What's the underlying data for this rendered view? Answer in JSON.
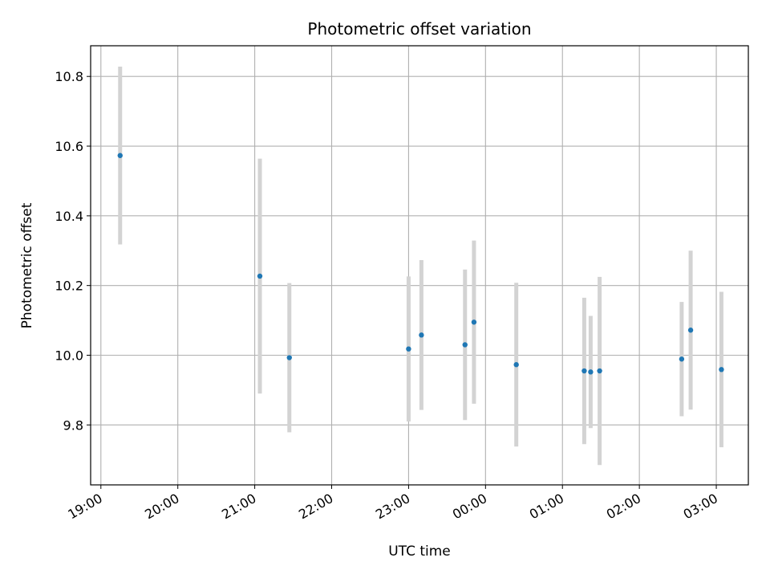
{
  "chart_data": {
    "type": "scatter",
    "title": "Photometric offset variation",
    "xlabel": "UTC time",
    "ylabel": "Photometric offset",
    "x_ticks": [
      "19:00",
      "20:00",
      "21:00",
      "22:00",
      "23:00",
      "00:00",
      "01:00",
      "02:00",
      "03:00"
    ],
    "y_ticks": [
      "9.8",
      "10.0",
      "10.2",
      "10.4",
      "10.6",
      "10.8"
    ],
    "ylim": [
      9.628,
      10.888
    ],
    "xlim": [
      "19:00",
      "03:25"
    ],
    "grid": true,
    "errorbar_color": "#d3d3d3",
    "point_color": "#1f77b4",
    "points": [
      {
        "x": "19:15",
        "y": 10.573,
        "err": 0.255
      },
      {
        "x": "21:04",
        "y": 10.227,
        "err": 0.337
      },
      {
        "x": "21:27",
        "y": 9.993,
        "err": 0.214
      },
      {
        "x": "23:00",
        "y": 10.018,
        "err": 0.208
      },
      {
        "x": "23:10",
        "y": 10.058,
        "err": 0.215
      },
      {
        "x": "23:44",
        "y": 10.03,
        "err": 0.216
      },
      {
        "x": "23:51",
        "y": 10.095,
        "err": 0.234
      },
      {
        "x": "00:24",
        "y": 9.973,
        "err": 0.235
      },
      {
        "x": "01:17",
        "y": 9.955,
        "err": 0.21
      },
      {
        "x": "01:22",
        "y": 9.952,
        "err": 0.161
      },
      {
        "x": "01:29",
        "y": 9.955,
        "err": 0.27
      },
      {
        "x": "02:33",
        "y": 9.989,
        "err": 0.164
      },
      {
        "x": "02:40",
        "y": 10.072,
        "err": 0.228
      },
      {
        "x": "03:04",
        "y": 9.959,
        "err": 0.223
      }
    ]
  }
}
